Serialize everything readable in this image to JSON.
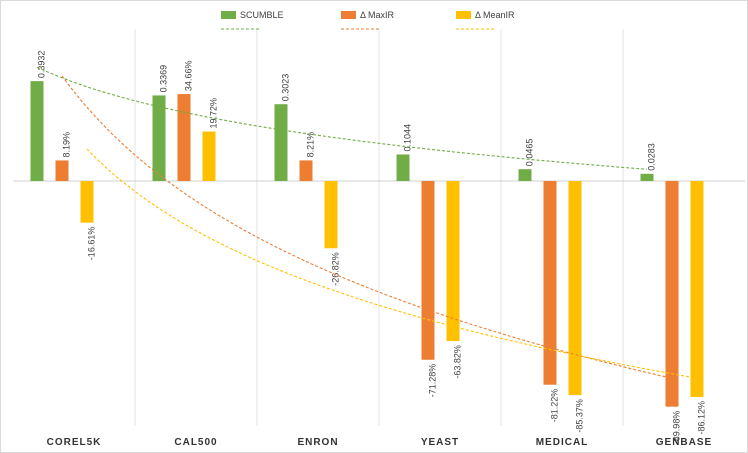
{
  "chart_data": {
    "type": "bar",
    "categories": [
      "COREL5K",
      "CAL500",
      "ENRON",
      "YEAST",
      "MEDICAL",
      "GENBASE"
    ],
    "series": [
      {
        "name": "SCUMBLE",
        "color": "#70ad47",
        "axis": "scumble",
        "values": [
          0.3932,
          0.3369,
          0.3023,
          0.1044,
          0.0465,
          0.0283
        ],
        "labels": [
          "0.3932",
          "0.3369",
          "0.3023",
          "0.1044",
          "0.0465",
          "0.0283"
        ]
      },
      {
        "name": "Δ MaxIR",
        "color": "#ed7d31",
        "axis": "percent",
        "values": [
          8.19,
          34.66,
          8.21,
          -71.28,
          -81.22,
          -89.98
        ],
        "labels": [
          "8.19%",
          "34.66%",
          "8.21%",
          "-71.28%",
          "-81.22%",
          "-89.98%"
        ]
      },
      {
        "name": "Δ MeanIR",
        "color": "#ffc000",
        "axis": "percent",
        "values": [
          -16.61,
          19.72,
          -26.82,
          -63.82,
          -85.37,
          -86.12
        ],
        "labels": [
          "-16.61%",
          "19.72%",
          "-26.82%",
          "-63.82%",
          "-85.37%",
          "-86.12%"
        ]
      }
    ],
    "trendlines": [
      {
        "series": "SCUMBLE",
        "type": "log",
        "color": "#70ad47"
      },
      {
        "series": "Δ MaxIR",
        "type": "log",
        "color": "#ed7d31"
      },
      {
        "series": "Δ MeanIR",
        "type": "log",
        "color": "#ffc000"
      }
    ],
    "legend_position": "top",
    "grid": "vertical category separators",
    "scumble_range": [
      0,
      0.4
    ],
    "percent_range": [
      -90,
      40
    ]
  }
}
